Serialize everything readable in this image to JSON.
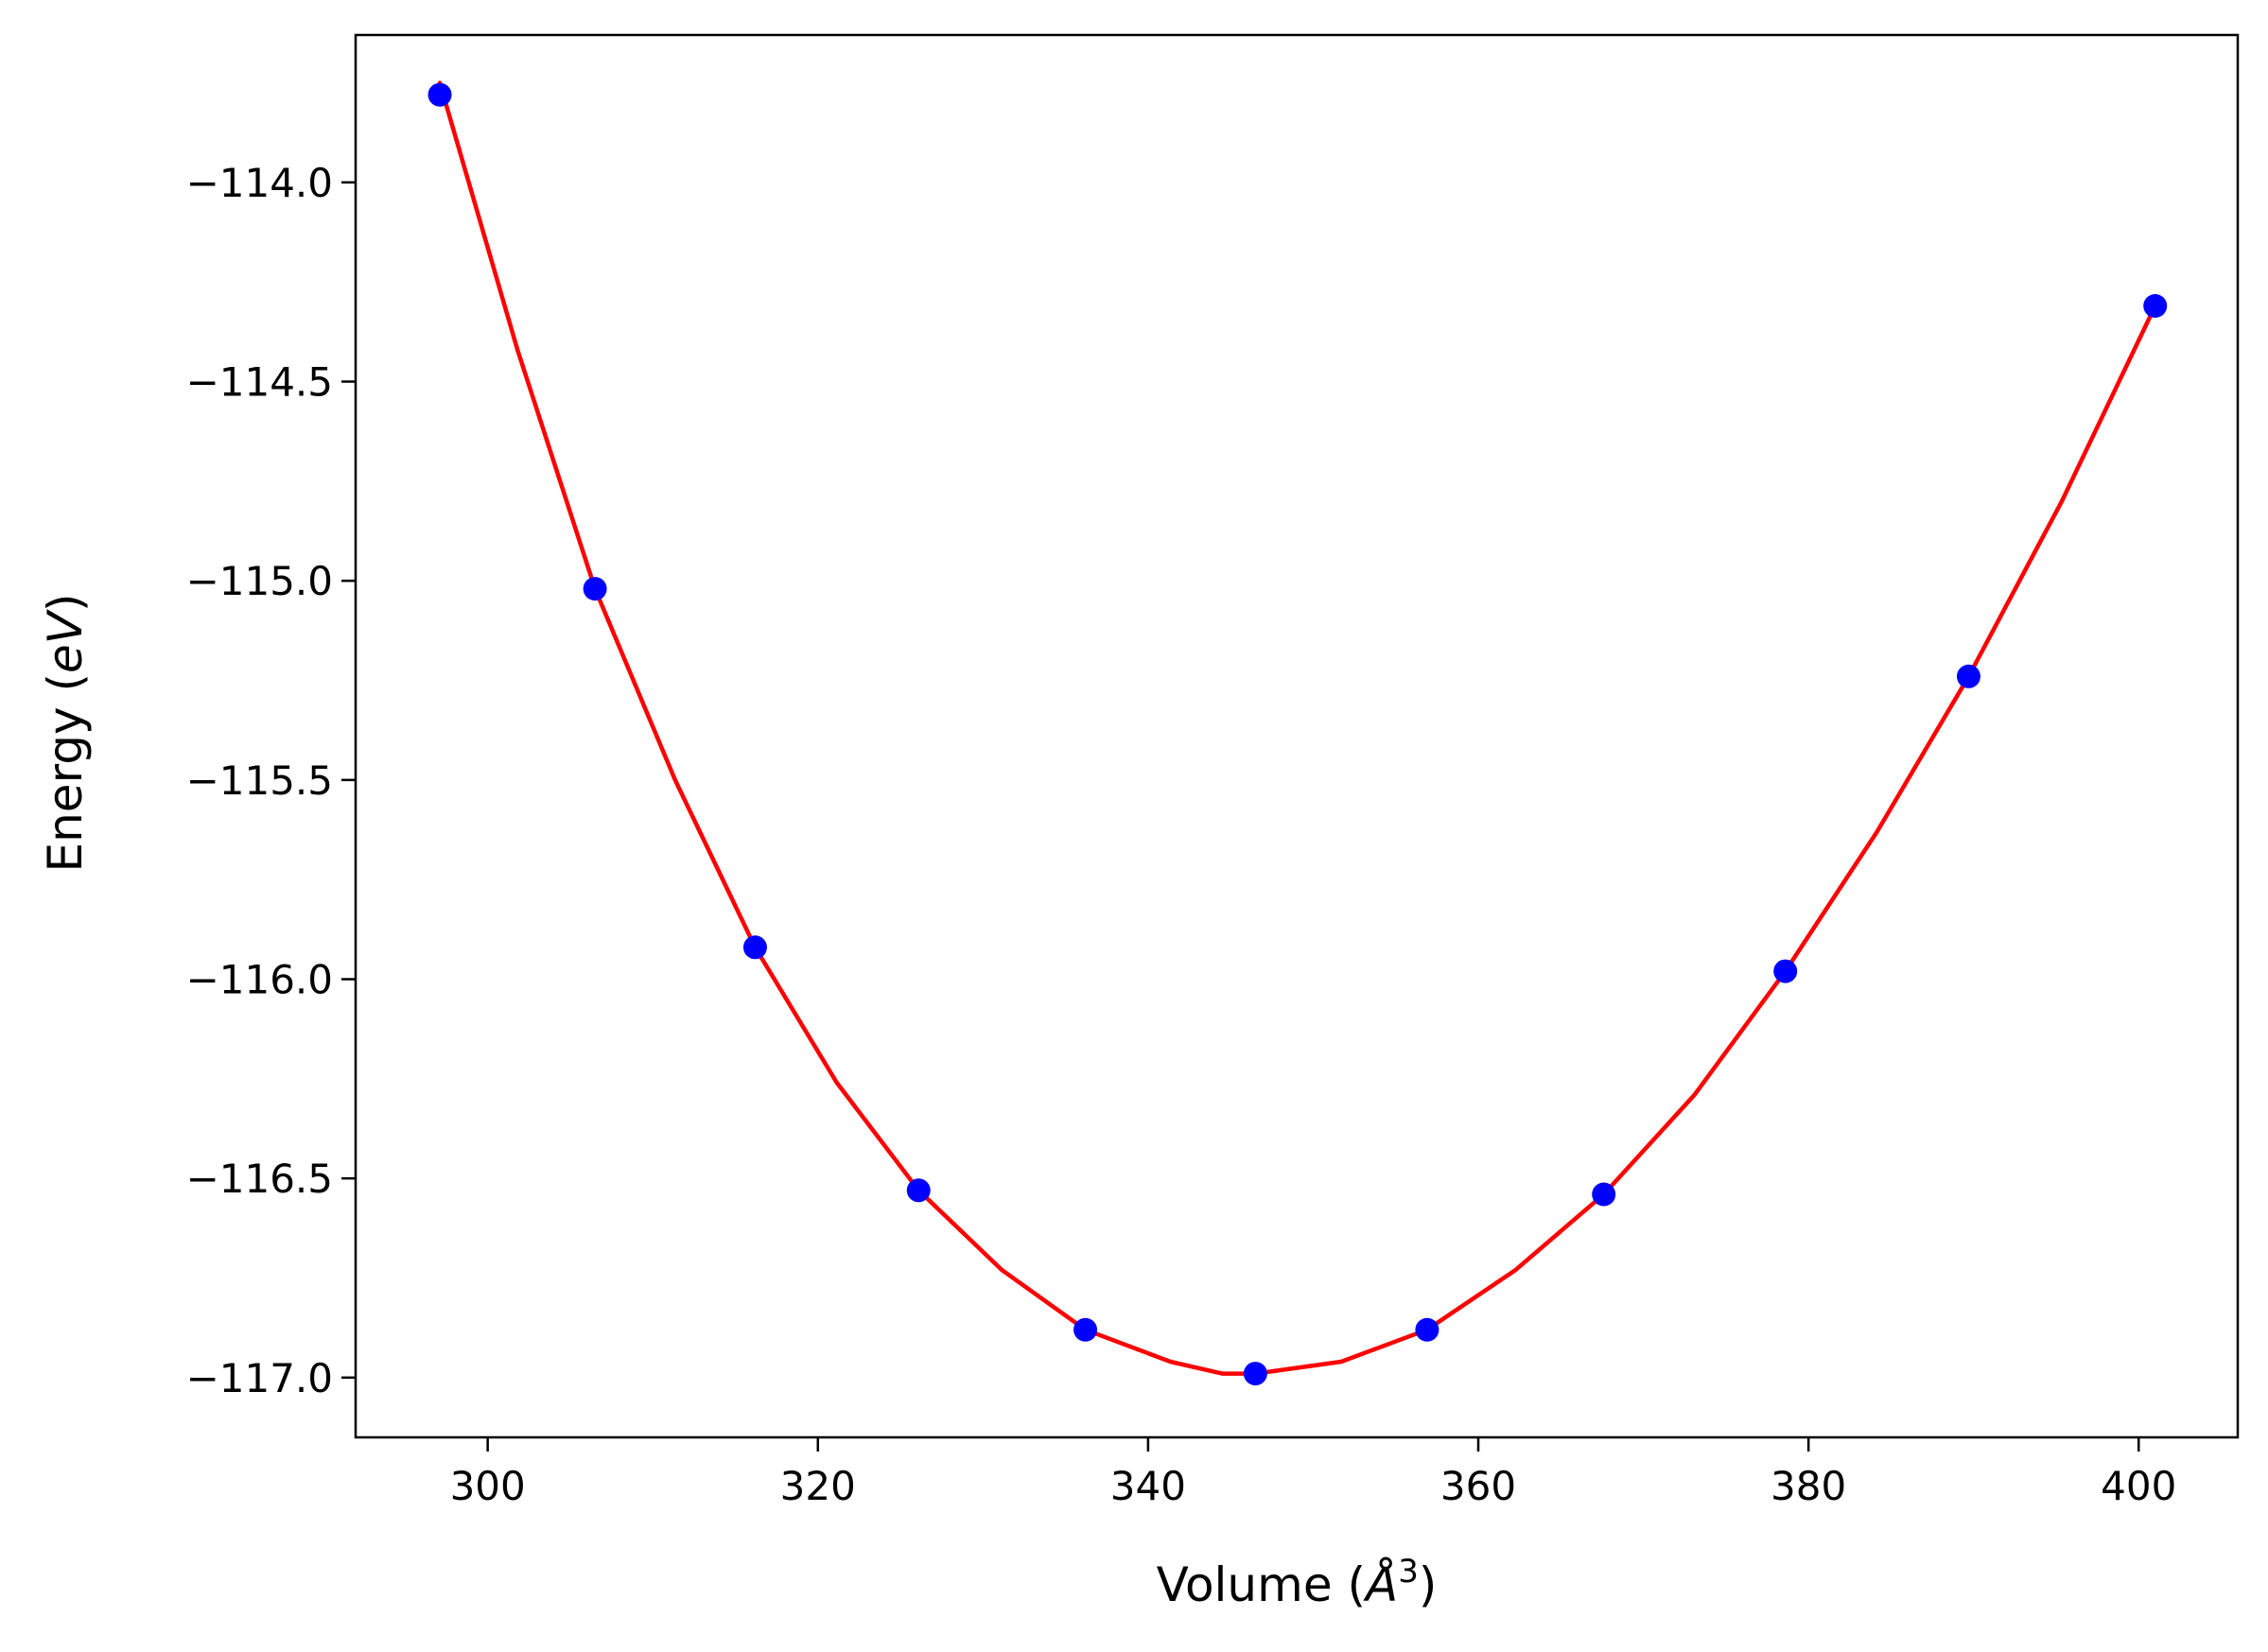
{
  "chart_data": {
    "type": "scatter",
    "title": "",
    "xlabel": {
      "prefix": "Volume (",
      "unit_symbol": "Å",
      "unit_power": "3",
      "suffix": ")"
    },
    "ylabel": {
      "prefix": "Energy (",
      "unit": "eV",
      "suffix": ")"
    },
    "xlim": [
      292,
      406
    ],
    "ylim": [
      -117.15,
      -113.63
    ],
    "x_ticks": [
      300,
      320,
      340,
      360,
      380,
      400
    ],
    "x_tick_labels": [
      "300",
      "320",
      "340",
      "360",
      "380",
      "400"
    ],
    "y_ticks": [
      -114.0,
      -114.5,
      -115.0,
      -115.5,
      -116.0,
      -116.5,
      -117.0
    ],
    "y_tick_labels": [
      "−114.0",
      "−114.5",
      "−115.0",
      "−115.5",
      "−116.0",
      "−116.5",
      "−117.0"
    ],
    "grid": false,
    "legend": "none",
    "series": [
      {
        "kind": "points",
        "color": "#0000ff",
        "x": [
          297.1,
          306.5,
          316.2,
          326.1,
          336.2,
          346.5,
          356.9,
          367.6,
          378.6,
          389.7,
          401.0
        ],
        "y": [
          -113.78,
          -115.02,
          -115.92,
          -116.53,
          -116.88,
          -116.99,
          -116.88,
          -116.54,
          -115.98,
          -115.24,
          -114.31
        ]
      },
      {
        "kind": "fit-curve",
        "color": "#ff0000",
        "x": [
          297.1,
          301.8,
          306.5,
          311.35,
          316.2,
          321.15,
          326.1,
          331.15,
          336.2,
          341.35,
          344.5,
          346.5,
          351.7,
          356.9,
          362.25,
          367.6,
          373.1,
          378.6,
          384.15,
          389.7,
          395.35,
          401.0
        ],
        "y": [
          -113.75,
          -114.42,
          -115.02,
          -115.5,
          -115.92,
          -116.26,
          -116.53,
          -116.73,
          -116.88,
          -116.96,
          -116.99,
          -116.99,
          -116.96,
          -116.88,
          -116.73,
          -116.54,
          -116.29,
          -115.98,
          -115.63,
          -115.24,
          -114.8,
          -114.31
        ]
      }
    ]
  }
}
